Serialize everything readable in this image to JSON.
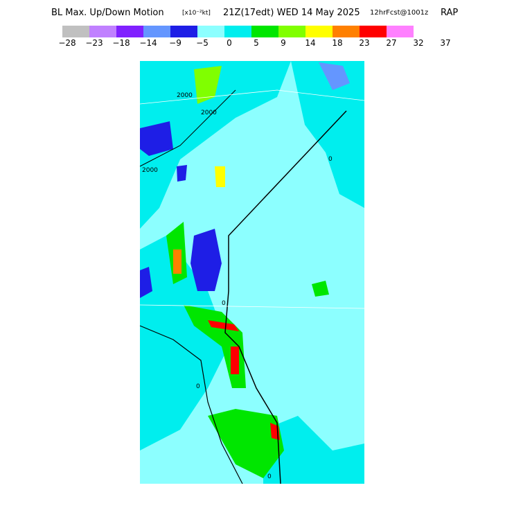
{
  "header": {
    "title": "BL Max. Up/Down Motion",
    "units": "[x10⁻²kt]",
    "valid": "21Z(17edt) WED 14 May 2025",
    "forecast": "12hrFcst@1001z",
    "model": "RAP"
  },
  "legend": {
    "colors": [
      "#c0c0c0",
      "#c080ff",
      "#8020ff",
      "#6496ff",
      "#1e1ee6",
      "#8cffff",
      "#00eeee",
      "#00e600",
      "#80ff00",
      "#ffff00",
      "#ff8000",
      "#ff0000",
      "#ff80ff"
    ],
    "labels": [
      "−28",
      "−23",
      "−18",
      "−14",
      "−9",
      "−5",
      "0",
      "5",
      "9",
      "14",
      "18",
      "23",
      "27",
      "32",
      "37"
    ]
  },
  "map": {
    "contour_labels": [
      "2000",
      "2000",
      "2000",
      "0",
      "0",
      "0",
      "0"
    ]
  }
}
